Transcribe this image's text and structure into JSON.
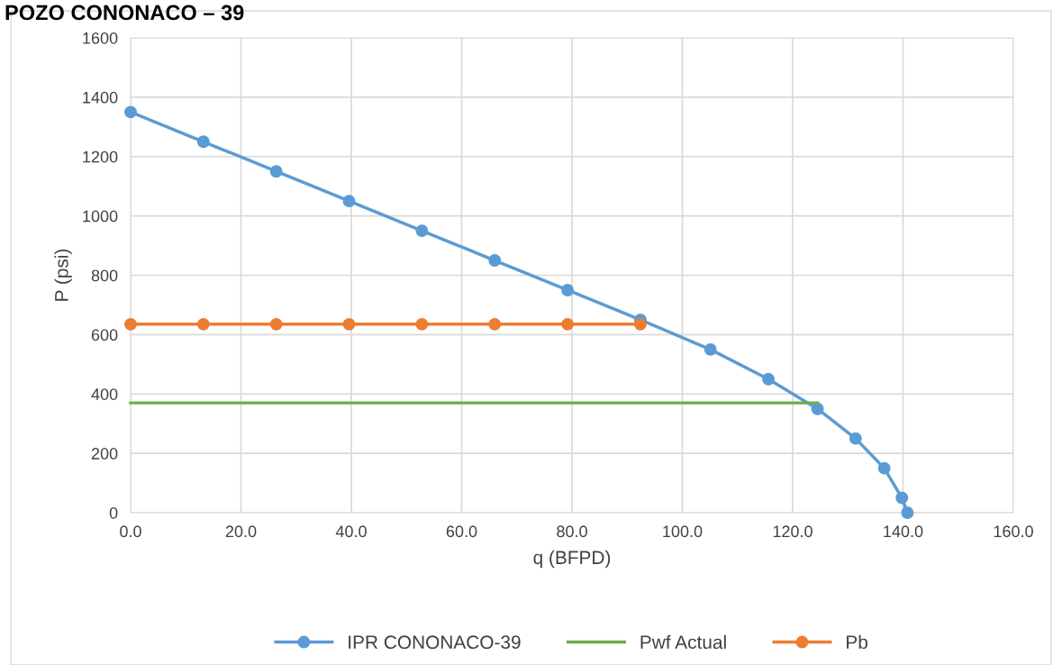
{
  "chart_data": {
    "type": "line",
    "title": "POZO CONONACO – 39",
    "xlabel": "q (BFPD)",
    "ylabel": "P (psi)",
    "xlim": [
      0,
      160
    ],
    "xticks": [
      {
        "value": 0,
        "label": "0.0"
      },
      {
        "value": 20,
        "label": "20.0"
      },
      {
        "value": 40,
        "label": "40.0"
      },
      {
        "value": 60,
        "label": "60.0"
      },
      {
        "value": 80,
        "label": "80.0"
      },
      {
        "value": 100,
        "label": "100.0"
      },
      {
        "value": 120,
        "label": "120.0"
      },
      {
        "value": 140,
        "label": "140.0"
      },
      {
        "value": 160,
        "label": "160.0"
      }
    ],
    "ylim": [
      0,
      1600
    ],
    "yticks": [
      0,
      200,
      400,
      600,
      800,
      1000,
      1200,
      1400,
      1600
    ],
    "grid": true,
    "legend": "bottom",
    "series": [
      {
        "name": "IPR CONONACO-39",
        "color": "#5b9bd5",
        "marker": "circle",
        "x": [
          0,
          13.2,
          26.4,
          39.6,
          52.8,
          66,
          79.2,
          92.4,
          105.1,
          115.6,
          124.5,
          131.4,
          136.6,
          139.8,
          140.8
        ],
        "values": [
          1350,
          1250,
          1150,
          1050,
          950,
          850,
          750,
          650,
          550,
          450,
          350,
          250,
          150,
          50,
          0
        ]
      },
      {
        "name": "Pwf Actual",
        "color": "#70ad47",
        "x": [
          0,
          124.5
        ],
        "values": [
          370,
          370
        ]
      },
      {
        "name": "Pb",
        "color": "#ed7d31",
        "marker": "circle",
        "x": [
          0,
          13.2,
          26.4,
          39.6,
          52.8,
          66,
          79.2,
          92.4
        ],
        "values": [
          635,
          635,
          635,
          635,
          635,
          635,
          635,
          635
        ]
      }
    ]
  }
}
